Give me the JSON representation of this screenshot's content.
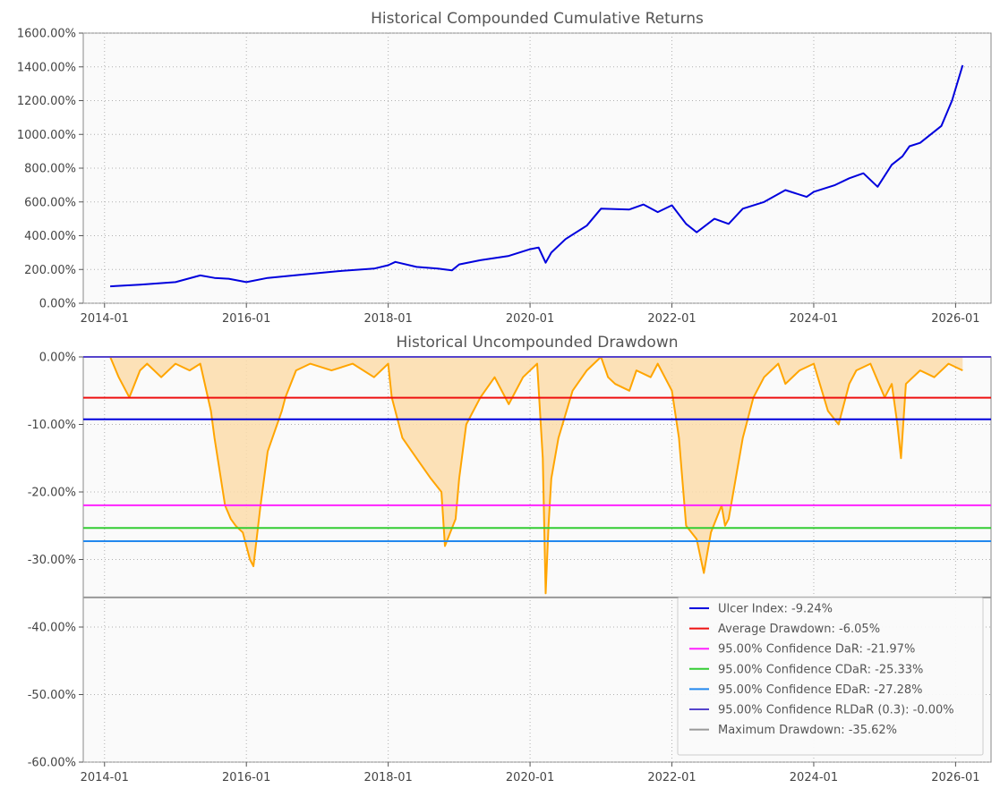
{
  "chart_data": [
    {
      "type": "line",
      "title": "Historical Compounded Cumulative Returns",
      "xlabel": "",
      "ylabel": "",
      "x_ticks": [
        "2014-01",
        "2016-01",
        "2018-01",
        "2020-01",
        "2022-01",
        "2024-01",
        "2026-01"
      ],
      "y_ticks": [
        "0.00%",
        "200.00%",
        "400.00%",
        "600.00%",
        "800.00%",
        "1000.00%",
        "1200.00%",
        "1400.00%",
        "1600.00%"
      ],
      "ylim": [
        0,
        1600
      ],
      "xlim": [
        2013.7,
        2026.5
      ],
      "grid": true,
      "series": [
        {
          "name": "Cumulative Returns",
          "color": "#0000dd",
          "x": [
            2014.08,
            2014.5,
            2015.0,
            2015.35,
            2015.55,
            2015.75,
            2016.0,
            2016.3,
            2016.8,
            2017.3,
            2017.8,
            2018.0,
            2018.1,
            2018.4,
            2018.7,
            2018.9,
            2019.0,
            2019.3,
            2019.7,
            2020.0,
            2020.12,
            2020.22,
            2020.3,
            2020.5,
            2020.8,
            2021.0,
            2021.4,
            2021.6,
            2021.8,
            2022.0,
            2022.2,
            2022.35,
            2022.6,
            2022.8,
            2023.0,
            2023.3,
            2023.6,
            2023.9,
            2024.0,
            2024.3,
            2024.5,
            2024.7,
            2024.9,
            2025.1,
            2025.25,
            2025.35,
            2025.5,
            2025.8,
            2025.95,
            2026.1
          ],
          "y": [
            100,
            110,
            125,
            165,
            150,
            145,
            125,
            150,
            170,
            190,
            205,
            225,
            245,
            215,
            205,
            195,
            230,
            255,
            280,
            320,
            330,
            240,
            300,
            380,
            460,
            560,
            555,
            585,
            540,
            580,
            470,
            420,
            500,
            470,
            560,
            600,
            670,
            630,
            660,
            700,
            740,
            770,
            690,
            820,
            870,
            930,
            950,
            1050,
            1200,
            1410
          ]
        }
      ]
    },
    {
      "type": "area",
      "title": "Historical Uncompounded Drawdown",
      "xlabel": "",
      "ylabel": "",
      "x_ticks": [
        "2014-01",
        "2016-01",
        "2018-01",
        "2020-01",
        "2022-01",
        "2024-01",
        "2026-01"
      ],
      "y_ticks": [
        "0.00%",
        "-10.00%",
        "-20.00%",
        "-30.00%",
        "-40.00%",
        "-50.00%",
        "-60.00%"
      ],
      "ylim": [
        -60,
        0
      ],
      "xlim": [
        2013.7,
        2026.5
      ],
      "grid": true,
      "series": [
        {
          "name": "Drawdown",
          "color": "#ffa500",
          "fill": "#fcdcaa",
          "x": [
            2014.08,
            2014.2,
            2014.35,
            2014.5,
            2014.6,
            2014.8,
            2015.0,
            2015.2,
            2015.35,
            2015.5,
            2015.55,
            2015.7,
            2015.78,
            2015.85,
            2015.95,
            2016.05,
            2016.1,
            2016.2,
            2016.3,
            2016.5,
            2016.55,
            2016.7,
            2016.9,
            2017.2,
            2017.5,
            2017.8,
            2018.0,
            2018.05,
            2018.2,
            2018.4,
            2018.6,
            2018.75,
            2018.8,
            2018.95,
            2019.0,
            2019.1,
            2019.3,
            2019.5,
            2019.7,
            2019.9,
            2020.1,
            2020.18,
            2020.22,
            2020.26,
            2020.3,
            2020.4,
            2020.6,
            2020.8,
            2021.0,
            2021.1,
            2021.2,
            2021.4,
            2021.5,
            2021.7,
            2021.8,
            2022.0,
            2022.1,
            2022.2,
            2022.35,
            2022.45,
            2022.55,
            2022.7,
            2022.75,
            2022.8,
            2022.9,
            2023.0,
            2023.15,
            2023.3,
            2023.5,
            2023.6,
            2023.8,
            2024.0,
            2024.2,
            2024.35,
            2024.5,
            2024.6,
            2024.8,
            2025.0,
            2025.1,
            2025.18,
            2025.23,
            2025.3,
            2025.5,
            2025.7,
            2025.9,
            2026.1
          ],
          "y": [
            0,
            -3,
            -6,
            -2,
            -1,
            -3,
            -1,
            -2,
            -1,
            -8,
            -12,
            -22,
            -24,
            -25,
            -26,
            -30,
            -31,
            -22,
            -14,
            -8,
            -6,
            -2,
            -1,
            -2,
            -1,
            -3,
            -1,
            -6,
            -12,
            -15,
            -18,
            -20,
            -28,
            -24,
            -18,
            -10,
            -6,
            -3,
            -7,
            -3,
            -1,
            -15,
            -35,
            -25,
            -18,
            -12,
            -5,
            -2,
            0,
            -3,
            -4,
            -5,
            -2,
            -3,
            -1,
            -5,
            -12,
            -25,
            -27,
            -32,
            -26,
            -22,
            -25,
            -24,
            -18,
            -12,
            -6,
            -3,
            -1,
            -4,
            -2,
            -1,
            -8,
            -10,
            -4,
            -2,
            -1,
            -6,
            -4,
            -10,
            -15,
            -4,
            -2,
            -3,
            -1,
            -2
          ]
        }
      ],
      "hlines": [
        {
          "label": "Ulcer Index: -9.24%",
          "value": -9.24,
          "color": "#0000dd"
        },
        {
          "label": "Average Drawdown: -6.05%",
          "value": -6.05,
          "color": "#ee1111"
        },
        {
          "label": "95.00% Confidence DaR: -21.97%",
          "value": -21.97,
          "color": "#ff22ff"
        },
        {
          "label": "95.00% Confidence CDaR: -25.33%",
          "value": -25.33,
          "color": "#33cc33"
        },
        {
          "label": "95.00% Confidence EDaR: -27.28%",
          "value": -27.28,
          "color": "#2288ee"
        },
        {
          "label": "95.00% Confidence RLDaR (0.3): -0.00%",
          "value": -0.0,
          "color": "#5544cc"
        },
        {
          "label": "Maximum Drawdown: -35.62%",
          "value": -35.62,
          "color": "#999999"
        }
      ],
      "legend_position": "bottom-right"
    }
  ]
}
